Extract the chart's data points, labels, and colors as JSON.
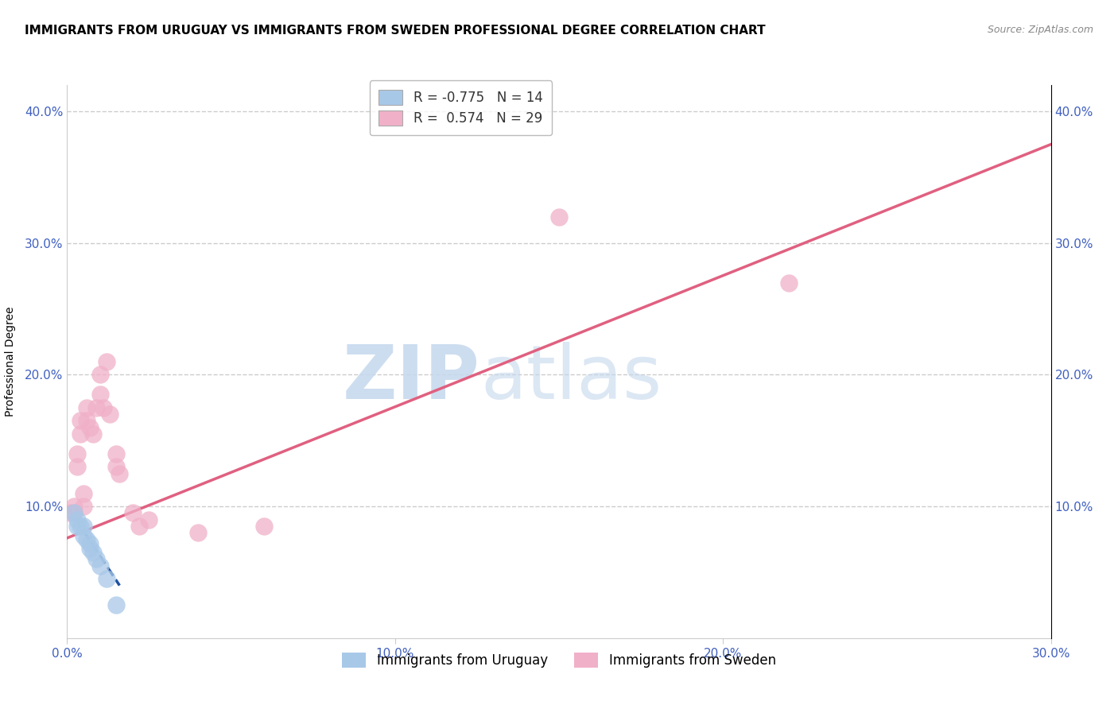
{
  "title": "IMMIGRANTS FROM URUGUAY VS IMMIGRANTS FROM SWEDEN PROFESSIONAL DEGREE CORRELATION CHART",
  "source": "Source: ZipAtlas.com",
  "xlabel_blue": "Immigrants from Uruguay",
  "xlabel_pink": "Immigrants from Sweden",
  "ylabel": "Professional Degree",
  "xlim": [
    0.0,
    0.3
  ],
  "ylim": [
    0.0,
    0.42
  ],
  "x_ticks": [
    0.0,
    0.1,
    0.2,
    0.3
  ],
  "y_ticks": [
    0.1,
    0.2,
    0.3,
    0.4
  ],
  "x_tick_labels": [
    "0.0%",
    "10.0%",
    "20.0%",
    "30.0%"
  ],
  "y_tick_labels_left": [
    "10.0%",
    "20.0%",
    "30.0%",
    "40.0%"
  ],
  "y_tick_labels_right": [
    "10.0%",
    "20.0%",
    "30.0%",
    "40.0%"
  ],
  "legend_blue_r": "R = -0.775",
  "legend_blue_n": "N = 14",
  "legend_pink_r": "R =  0.574",
  "legend_pink_n": "N = 29",
  "blue_color": "#a8c8e8",
  "pink_color": "#f0b0c8",
  "blue_line_color": "#2050a0",
  "pink_line_color": "#e06080",
  "watermark_zip": "ZIP",
  "watermark_atlas": "atlas",
  "grid_color": "#cccccc",
  "background_color": "#ffffff",
  "title_fontsize": 11,
  "axis_label_fontsize": 10,
  "tick_fontsize": 11,
  "tick_color": "#4060c0",
  "blue_scatter_x": [
    0.002,
    0.003,
    0.003,
    0.004,
    0.005,
    0.005,
    0.006,
    0.007,
    0.007,
    0.008,
    0.009,
    0.01,
    0.012,
    0.015
  ],
  "blue_scatter_y": [
    0.095,
    0.09,
    0.085,
    0.085,
    0.085,
    0.078,
    0.075,
    0.072,
    0.068,
    0.065,
    0.06,
    0.055,
    0.045,
    0.025
  ],
  "pink_scatter_x": [
    0.001,
    0.002,
    0.002,
    0.003,
    0.003,
    0.004,
    0.004,
    0.005,
    0.005,
    0.006,
    0.006,
    0.007,
    0.008,
    0.009,
    0.01,
    0.01,
    0.011,
    0.012,
    0.013,
    0.015,
    0.015,
    0.016,
    0.02,
    0.022,
    0.025,
    0.04,
    0.06,
    0.15,
    0.22
  ],
  "pink_scatter_y": [
    0.095,
    0.1,
    0.095,
    0.14,
    0.13,
    0.155,
    0.165,
    0.1,
    0.11,
    0.175,
    0.165,
    0.16,
    0.155,
    0.175,
    0.2,
    0.185,
    0.175,
    0.21,
    0.17,
    0.14,
    0.13,
    0.125,
    0.095,
    0.085,
    0.09,
    0.08,
    0.085,
    0.32,
    0.27
  ],
  "pink_line_x0": 0.0,
  "pink_line_y0": 0.076,
  "pink_line_x1": 0.3,
  "pink_line_y1": 0.375,
  "blue_line_x0": 0.0,
  "blue_line_y0": 0.1,
  "blue_line_x1": 0.016,
  "blue_line_y1": 0.04
}
